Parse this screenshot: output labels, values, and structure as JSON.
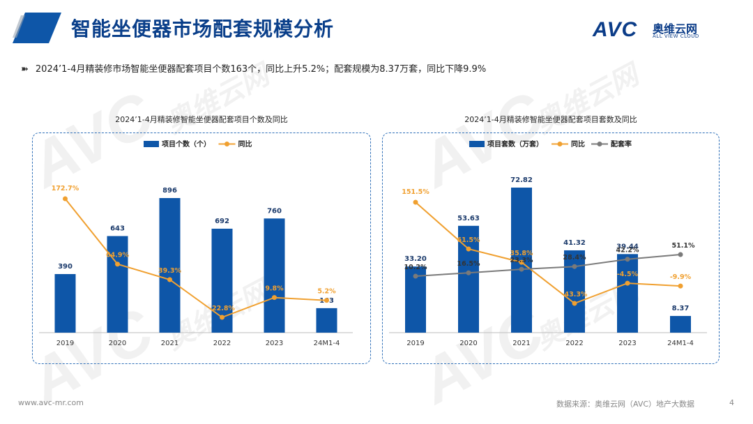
{
  "header": {
    "title": "智能坐便器市场配套规模分析",
    "logo_mark": "AVC",
    "logo_cn": "奥维云网",
    "logo_en": "ALL VIEW CLOUD"
  },
  "summary": "2024’1-4月精装修市场智能坐便器配套项目个数163个，同比上升5.2%；配套规模为8.37万套，同比下降9.9%",
  "watermark": {
    "mark": "AVC",
    "cn": "奥维云网",
    "en": "ALL VIEW CLOUD"
  },
  "footer": {
    "website": "www.avc-mr.com",
    "source": "数据来源：奥维云网（AVC）地产大数据",
    "page": "4"
  },
  "colors": {
    "bar": "#0e56a8",
    "yoy": "#f0a030",
    "ratio": "#7a7a7a",
    "panel_border": "#2e6fb8",
    "title": "#0a3f8a"
  },
  "chart_data": [
    {
      "type": "bar",
      "title": "2024’1-4月精装修智能坐便器配套项目个数及同比",
      "categories": [
        "2019",
        "2020",
        "2021",
        "2022",
        "2023",
        "24M1-4"
      ],
      "series": [
        {
          "name": "项目个数（个）",
          "type": "bar",
          "values": [
            390,
            643,
            896,
            692,
            760,
            163
          ],
          "labels": [
            "390",
            "643",
            "896",
            "692",
            "760",
            "163"
          ]
        },
        {
          "name": "同比",
          "type": "line",
          "values": [
            172.7,
            64.9,
            39.3,
            -22.8,
            9.8,
            5.2
          ],
          "labels": [
            "172.7%",
            "64.9%",
            "39.3%",
            "-22.8%",
            "9.8%",
            "5.2%"
          ]
        }
      ],
      "legend": "top-center",
      "grid": false
    },
    {
      "type": "bar",
      "title": "2024’1-4月精装修智能坐便器配套项目套数及同比",
      "categories": [
        "2019",
        "2020",
        "2021",
        "2022",
        "2023",
        "24M1-4"
      ],
      "series": [
        {
          "name": "项目套数（万套）",
          "type": "bar",
          "values": [
            33.2,
            53.63,
            72.82,
            41.32,
            39.44,
            8.37
          ],
          "labels": [
            "33.20",
            "53.63",
            "72.82",
            "41.32",
            "39.44",
            "8.37"
          ]
        },
        {
          "name": "同比",
          "type": "line",
          "values": [
            151.5,
            61.5,
            35.8,
            -43.3,
            -4.5,
            -9.9
          ],
          "labels": [
            "151.5%",
            "61.5%",
            "35.8%",
            "-43.3%",
            "-4.5%",
            "-9.9%"
          ]
        },
        {
          "name": "配套率",
          "type": "line",
          "values": [
            10.2,
            16.5,
            23.3,
            28.4,
            42.2,
            51.1
          ],
          "labels": [
            "10.2%",
            "16.5%",
            "23.3%",
            "28.4%",
            "42.2%",
            "51.1%"
          ]
        }
      ],
      "legend": "top-center",
      "grid": false
    }
  ]
}
